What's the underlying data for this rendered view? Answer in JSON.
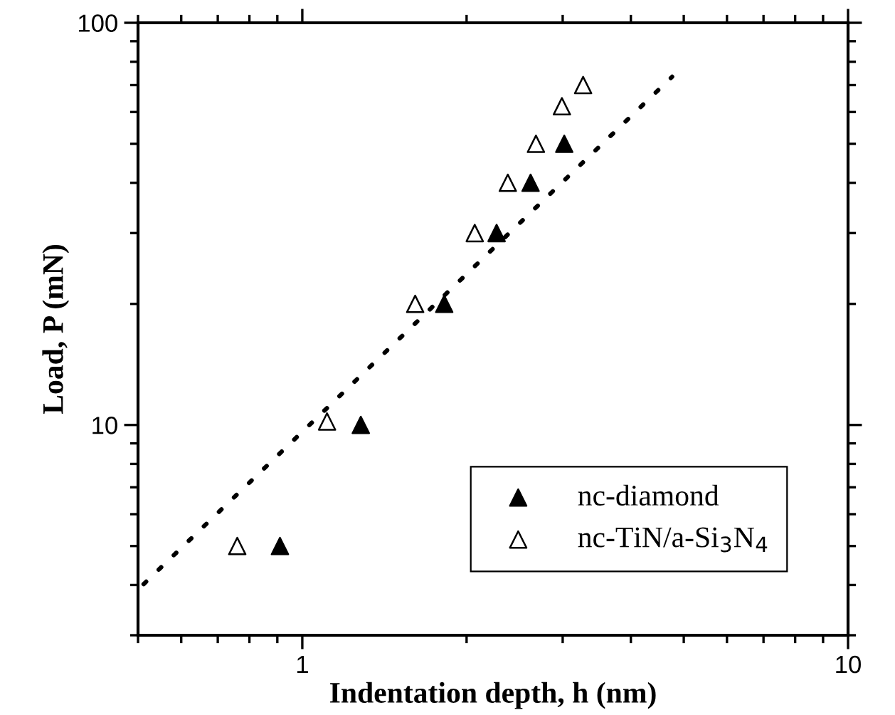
{
  "chart_data": {
    "type": "scatter",
    "xlabel": "Indentation depth, h (nm)",
    "ylabel": "Load, P (mN)",
    "log": "xy",
    "xlim": [
      0.5,
      10
    ],
    "ylim": [
      3,
      100
    ],
    "xticks": [
      1,
      10
    ],
    "yticks": [
      10,
      100
    ],
    "grid": false,
    "legend": "bottom right",
    "marker": "triangle",
    "series": [
      {
        "name": "nc-diamond",
        "color": "#000000",
        "x": [
          0.91,
          1.28,
          1.82,
          2.27,
          2.62,
          3.02
        ],
        "values": [
          5,
          10,
          20,
          30,
          40,
          50
        ]
      },
      {
        "name": "nc-TiN/a-Si$_{3}$N$_{4}$",
        "color": "#ffffff",
        "x": [
          0.76,
          1.11,
          1.61,
          2.07,
          2.38,
          2.68,
          2.99,
          3.27
        ],
        "values": [
          5,
          10.2,
          20,
          30,
          40,
          50,
          62,
          70
        ]
      },
      {
        "type": "line",
        "line_style": "dotted",
        "marker": "none",
        "color": "#000000",
        "x": [
          0.512,
          4.76
        ],
        "values": [
          4.02,
          73.4
        ]
      }
    ]
  }
}
